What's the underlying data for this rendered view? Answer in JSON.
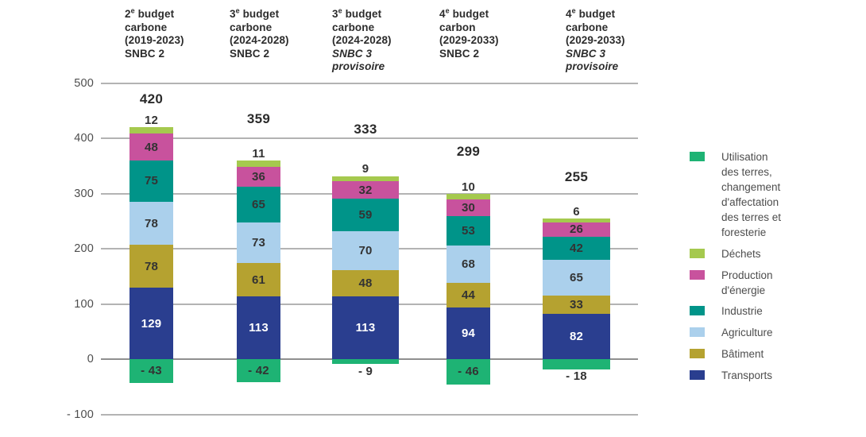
{
  "chart_data": {
    "type": "bar",
    "stacked": true,
    "grid": true,
    "legend_position": "right",
    "ylim": [
      -100,
      500
    ],
    "yticks": [
      500,
      400,
      300,
      200,
      100,
      0,
      -100
    ],
    "columns": [
      {
        "header_lines": [
          "2ᵉ budget",
          "carbone",
          "(2019-2023)"
        ],
        "scenario_lines": [
          "SNBC 2"
        ],
        "scenario_italic": false,
        "total": 420
      },
      {
        "header_lines": [
          "3ᵉ budget",
          "carbone",
          "(2024-2028)"
        ],
        "scenario_lines": [
          "SNBC 2"
        ],
        "scenario_italic": false,
        "total": 359
      },
      {
        "header_lines": [
          "3ᵉ budget",
          "carbone",
          "(2024-2028)"
        ],
        "scenario_lines": [
          "SNBC 3",
          "provisoire"
        ],
        "scenario_italic": true,
        "total": 333
      },
      {
        "header_lines": [
          "4ᵉ budget",
          "carbon",
          "(2029-2033)"
        ],
        "scenario_lines": [
          "SNBC 2"
        ],
        "scenario_italic": false,
        "total": 299
      },
      {
        "header_lines": [
          "4ᵉ budget",
          "carbone",
          "(2029-2033)"
        ],
        "scenario_lines": [
          "SNBC 3",
          "provisoire"
        ],
        "scenario_italic": true,
        "total": 255
      }
    ],
    "sectors_bottom_up": [
      {
        "id": "transports",
        "name": "Transports",
        "color": "#2a3e8f",
        "label_color": "#ffffff",
        "legend_lines": [
          "Transports"
        ],
        "values": [
          129,
          113,
          113,
          94,
          82
        ]
      },
      {
        "id": "batiment",
        "name": "Bâtiment",
        "color": "#b5a230",
        "legend_lines": [
          "Bâtiment"
        ],
        "values": [
          78,
          61,
          48,
          44,
          33
        ]
      },
      {
        "id": "agriculture",
        "name": "Agriculture",
        "color": "#abd0ec",
        "legend_lines": [
          "Agriculture"
        ],
        "values": [
          78,
          73,
          70,
          68,
          65
        ]
      },
      {
        "id": "industrie",
        "name": "Industrie",
        "color": "#009489",
        "legend_lines": [
          "Industrie"
        ],
        "values": [
          75,
          65,
          59,
          53,
          42
        ]
      },
      {
        "id": "production-energie",
        "name": "Production d'énergie",
        "color": "#c8529d",
        "legend_lines": [
          "Production",
          "d'énergie"
        ],
        "values": [
          48,
          36,
          32,
          30,
          26
        ]
      },
      {
        "id": "dechets",
        "name": "Déchets",
        "color": "#a5c94e",
        "legend_lines": [
          "Déchets"
        ],
        "values": [
          12,
          11,
          9,
          10,
          6
        ]
      },
      {
        "id": "utcatf",
        "name": "Utilisation des terres, changement d'affectation des terres et foresterie",
        "color": "#1eb374",
        "legend_lines": [
          "Utilisation",
          "des terres,",
          "changement",
          "d'affectation",
          "des terres et",
          "foresterie"
        ],
        "values": [
          -43,
          -42,
          -9,
          -46,
          -18
        ]
      }
    ],
    "gridline_color": "#b3b3b3",
    "zero_line_color": "#8f8f8f"
  }
}
